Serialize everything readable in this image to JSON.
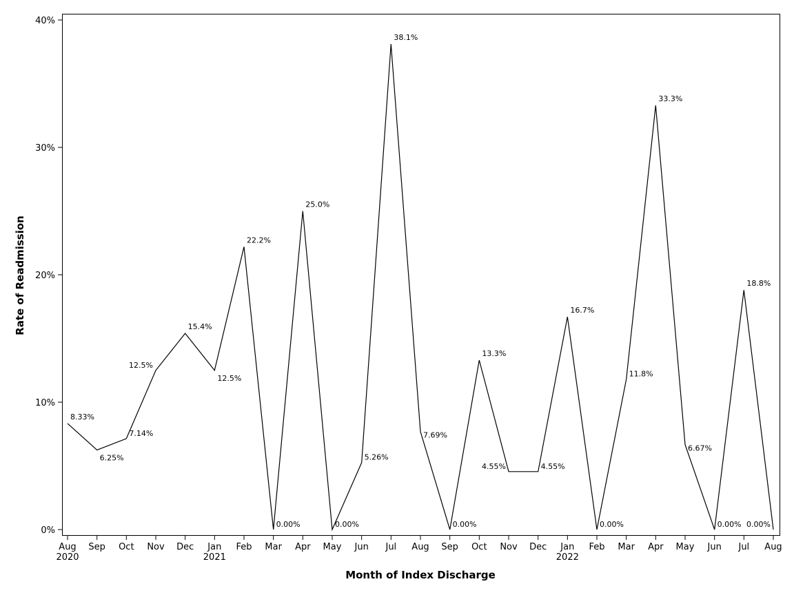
{
  "chart_data": {
    "type": "line",
    "xlabel": "Month of Index Discharge",
    "ylabel": "Rate of Readmission",
    "ylim": [
      0,
      40
    ],
    "y_ticks": [
      "0%",
      "10%",
      "20%",
      "30%",
      "40%"
    ],
    "grid": false,
    "legend": "none",
    "line_color": "#000000",
    "x": [
      "Aug 2020",
      "Sep 2020",
      "Oct 2020",
      "Nov 2020",
      "Dec 2020",
      "Jan 2021",
      "Feb 2021",
      "Mar 2021",
      "Apr 2021",
      "May 2021",
      "Jun 2021",
      "Jul 2021",
      "Aug 2021",
      "Sep 2021",
      "Oct 2021",
      "Nov 2021",
      "Dec 2021",
      "Jan 2022",
      "Feb 2022",
      "Mar 2022",
      "Apr 2022",
      "May 2022",
      "Jun 2022",
      "Jul 2022",
      "Aug 2022"
    ],
    "x_tick_labels": [
      {
        "month": "Aug",
        "year": "2020"
      },
      {
        "month": "Sep",
        "year": ""
      },
      {
        "month": "Oct",
        "year": ""
      },
      {
        "month": "Nov",
        "year": ""
      },
      {
        "month": "Dec",
        "year": ""
      },
      {
        "month": "Jan",
        "year": "2021"
      },
      {
        "month": "Feb",
        "year": ""
      },
      {
        "month": "Mar",
        "year": ""
      },
      {
        "month": "Apr",
        "year": ""
      },
      {
        "month": "May",
        "year": ""
      },
      {
        "month": "Jun",
        "year": ""
      },
      {
        "month": "Jul",
        "year": ""
      },
      {
        "month": "Aug",
        "year": ""
      },
      {
        "month": "Sep",
        "year": ""
      },
      {
        "month": "Oct",
        "year": ""
      },
      {
        "month": "Nov",
        "year": ""
      },
      {
        "month": "Dec",
        "year": ""
      },
      {
        "month": "Jan",
        "year": "2022"
      },
      {
        "month": "Feb",
        "year": ""
      },
      {
        "month": "Mar",
        "year": ""
      },
      {
        "month": "Apr",
        "year": ""
      },
      {
        "month": "May",
        "year": ""
      },
      {
        "month": "Jun",
        "year": ""
      },
      {
        "month": "Jul",
        "year": ""
      },
      {
        "month": "Aug",
        "year": ""
      }
    ],
    "values": [
      8.33,
      6.25,
      7.14,
      12.5,
      15.4,
      12.5,
      22.2,
      0.0,
      25.0,
      0.0,
      5.26,
      38.1,
      7.69,
      0.0,
      13.3,
      4.55,
      4.55,
      16.7,
      0.0,
      11.8,
      33.3,
      6.67,
      0.0,
      18.8,
      0.0
    ],
    "data_labels": [
      "8.33%",
      "6.25%",
      "7.14%",
      "12.5%",
      "15.4%",
      "12.5%",
      "22.2%",
      "0.00%",
      "25.0%",
      "0.00%",
      "5.26%",
      "38.1%",
      "7.69%",
      "0.00%",
      "13.3%",
      "4.55%",
      "4.55%",
      "16.7%",
      "0.00%",
      "11.8%",
      "33.3%",
      "6.67%",
      "0.00%",
      "18.8%",
      "0.00%"
    ]
  }
}
